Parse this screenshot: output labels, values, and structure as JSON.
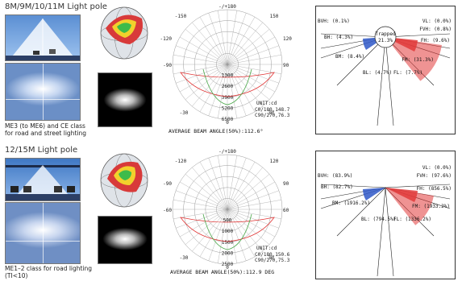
{
  "rows": [
    {
      "title": "8M/9M/10/11M Light pole",
      "caption": "ME3 (to ME6) and CE class for road and street lighting",
      "polar": {
        "top": "-/+180",
        "ticks_left": [
          "-150",
          "-120",
          "-90"
        ],
        "ticks_right": [
          "150",
          "120",
          "90"
        ],
        "radial": [
          "1300",
          "2600",
          "3900",
          "5200",
          "6500"
        ],
        "unit": "UNIT:cd",
        "c1": "C0/180,148.7",
        "c2": "C90/270,76.3",
        "lower_left": "-30",
        "lower_right": "30",
        "bottom": "0",
        "footer": "AVERAGE BEAM ANGLE(50%):112.6°"
      },
      "isolux": {
        "center": "Trapped",
        "center_val": "21.3%",
        "labels": [
          {
            "t": "VL: (0.0%)",
            "side": "r"
          },
          {
            "t": "BVH: (0.1%)",
            "side": "l"
          },
          {
            "t": "FVH: (0.8%)",
            "side": "r"
          },
          {
            "t": "BH: (4.3%)",
            "side": "l"
          },
          {
            "t": "FH: (9.6%)",
            "side": "r"
          },
          {
            "t": "BM: (8.4%)",
            "side": "l"
          },
          {
            "t": "FM: (31.3%)",
            "side": "r"
          },
          {
            "t": "BL: (4.7%)",
            "side": "l"
          },
          {
            "t": "FL: (7.7%)",
            "side": "r"
          }
        ]
      }
    },
    {
      "title": "12/15M Light pole",
      "caption": "ME1–2 class for road lighting (TI<10)",
      "polar": {
        "top": "-/+180",
        "ticks_left": [
          "-120",
          "-90",
          "-60"
        ],
        "ticks_right": [
          "120",
          "90",
          "60"
        ],
        "radial": [
          "500",
          "1000",
          "1500",
          "2000",
          "2500"
        ],
        "unit": "UNIT:cd",
        "c1": "C0/180,150.6",
        "c2": "C90/270,75.3",
        "lower_left": "-30",
        "lower_right": "30",
        "bottom": "0",
        "footer": "AVERAGE BEAM ANGLE(50%):112.9 DEG"
      },
      "isolux": {
        "center": "",
        "center_val": "",
        "labels": [
          {
            "t": "VL: (0.0%)",
            "side": "r"
          },
          {
            "t": "BVH: (83.9%)",
            "side": "l"
          },
          {
            "t": "FVH: (97.6%)",
            "side": "r"
          },
          {
            "t": "BH: (82.7%)",
            "side": "l"
          },
          {
            "t": "FH: (856.5%)",
            "side": "r"
          },
          {
            "t": "BM: (1916.2%)",
            "side": "l"
          },
          {
            "t": "FM: (1933.2%)",
            "side": "r"
          },
          {
            "t": "BL: (794.5%)",
            "side": "l"
          },
          {
            "t": "FL: (1336.2%)",
            "side": "r"
          }
        ]
      }
    }
  ],
  "colors": {
    "accent_red": "#e23a3a",
    "accent_blue": "#2f58c8",
    "grid": "#9a9a9a"
  }
}
